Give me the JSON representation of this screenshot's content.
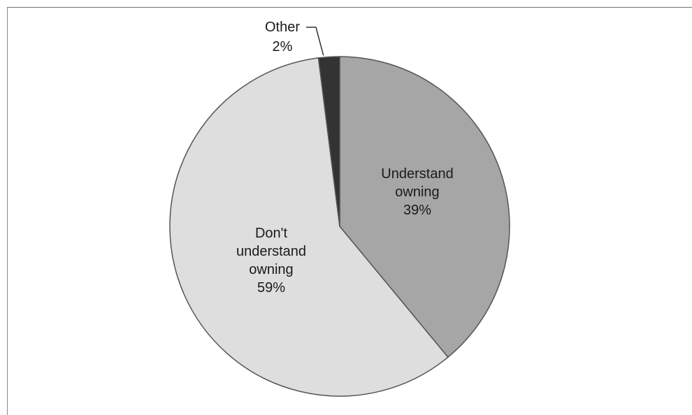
{
  "chart_data": {
    "type": "pie",
    "title": "",
    "start_angle_deg": 0,
    "direction": "clockwise",
    "slices": [
      {
        "label_lines": [
          "Understand",
          "owning"
        ],
        "percent_label": "39%",
        "value": 39,
        "color": "#a6a6a6"
      },
      {
        "label_lines": [
          "Don't",
          "understand",
          "owning"
        ],
        "percent_label": "59%",
        "value": 59,
        "color": "#dedede"
      },
      {
        "label_lines": [
          "Other"
        ],
        "percent_label": "2%",
        "value": 2,
        "color": "#333333"
      }
    ],
    "outline_color": "#555555",
    "legend": "none"
  }
}
